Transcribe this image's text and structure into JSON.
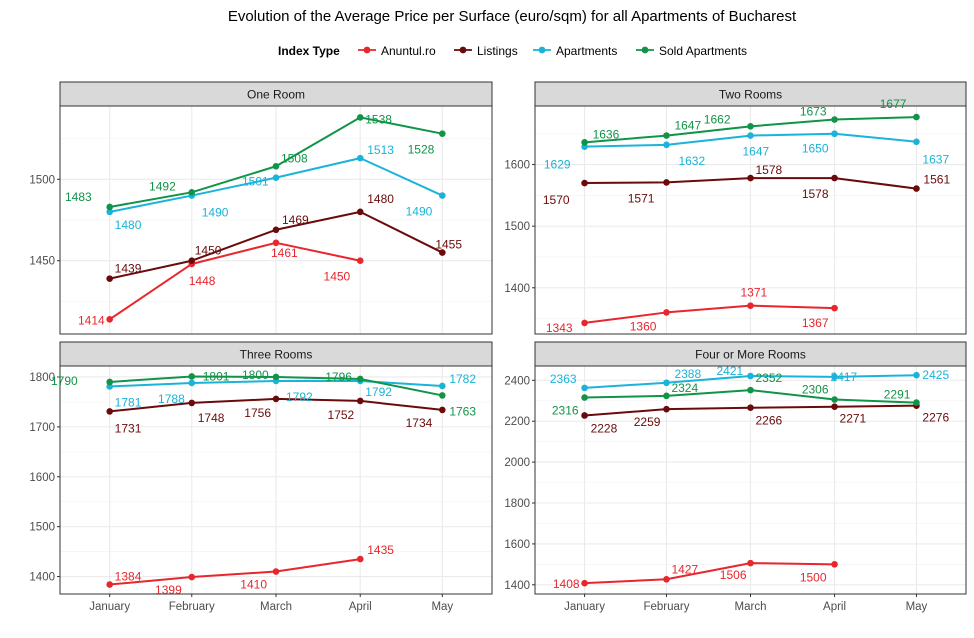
{
  "title": "Evolution of the Average Price per Surface (euro/sqm) for all Apartments of Bucharest",
  "legend": {
    "title": "Index Type",
    "items": [
      {
        "name": "Anuntul.ro",
        "color": "#e8262d"
      },
      {
        "name": "Listings",
        "color": "#6b0a0a"
      },
      {
        "name": "Apartments",
        "color": "#1ab3d9"
      },
      {
        "name": "Sold Apartments",
        "color": "#109447"
      }
    ]
  },
  "chart_data": [
    {
      "type": "line",
      "title": "One Room",
      "categories": [
        "January",
        "February",
        "March",
        "April",
        "May"
      ],
      "yticks": [
        1450,
        1500
      ],
      "series": [
        {
          "name": "Anuntul.ro",
          "values": [
            1414,
            1448,
            1461,
            1450,
            null
          ]
        },
        {
          "name": "Listings",
          "values": [
            1439,
            1450,
            1469,
            1480,
            1455
          ]
        },
        {
          "name": "Apartments",
          "values": [
            1480,
            1490,
            1501,
            1513,
            1490
          ]
        },
        {
          "name": "Sold Apartments",
          "values": [
            1483,
            1492,
            1508,
            1538,
            1528
          ]
        }
      ]
    },
    {
      "type": "line",
      "title": "Two Rooms",
      "categories": [
        "January",
        "February",
        "March",
        "April",
        "May"
      ],
      "yticks": [
        1400,
        1500,
        1600
      ],
      "series": [
        {
          "name": "Anuntul.ro",
          "values": [
            1343,
            1360,
            1371,
            1367,
            null
          ]
        },
        {
          "name": "Listings",
          "values": [
            1570,
            1571,
            1578,
            1578,
            1561
          ]
        },
        {
          "name": "Apartments",
          "values": [
            1629,
            1632,
            1647,
            1650,
            1637
          ]
        },
        {
          "name": "Sold Apartments",
          "values": [
            1636,
            1647,
            1662,
            1673,
            1677
          ]
        }
      ]
    },
    {
      "type": "line",
      "title": "Three Rooms",
      "categories": [
        "January",
        "February",
        "March",
        "April",
        "May"
      ],
      "yticks": [
        1400,
        1500,
        1600,
        1700,
        1800
      ],
      "series": [
        {
          "name": "Anuntul.ro",
          "values": [
            1384,
            1399,
            1410,
            1435,
            null
          ]
        },
        {
          "name": "Listings",
          "values": [
            1731,
            1748,
            1756,
            1752,
            1734
          ]
        },
        {
          "name": "Apartments",
          "values": [
            1781,
            1788,
            1792,
            1792,
            1782
          ]
        },
        {
          "name": "Sold Apartments",
          "values": [
            1790,
            1801,
            1800,
            1796,
            1763
          ]
        }
      ]
    },
    {
      "type": "line",
      "title": "Four or More Rooms",
      "categories": [
        "January",
        "February",
        "March",
        "April",
        "May"
      ],
      "yticks": [
        1400,
        1600,
        1800,
        2000,
        2200,
        2400
      ],
      "series": [
        {
          "name": "Anuntul.ro",
          "values": [
            1408,
            1427,
            1506,
            1500,
            null
          ]
        },
        {
          "name": "Listings",
          "values": [
            2228,
            2259,
            2266,
            2271,
            2276
          ]
        },
        {
          "name": "Apartments",
          "values": [
            2363,
            2388,
            2421,
            2417,
            2425
          ]
        },
        {
          "name": "Sold Apartments",
          "values": [
            2316,
            2324,
            2352,
            2306,
            2291
          ]
        }
      ]
    }
  ]
}
